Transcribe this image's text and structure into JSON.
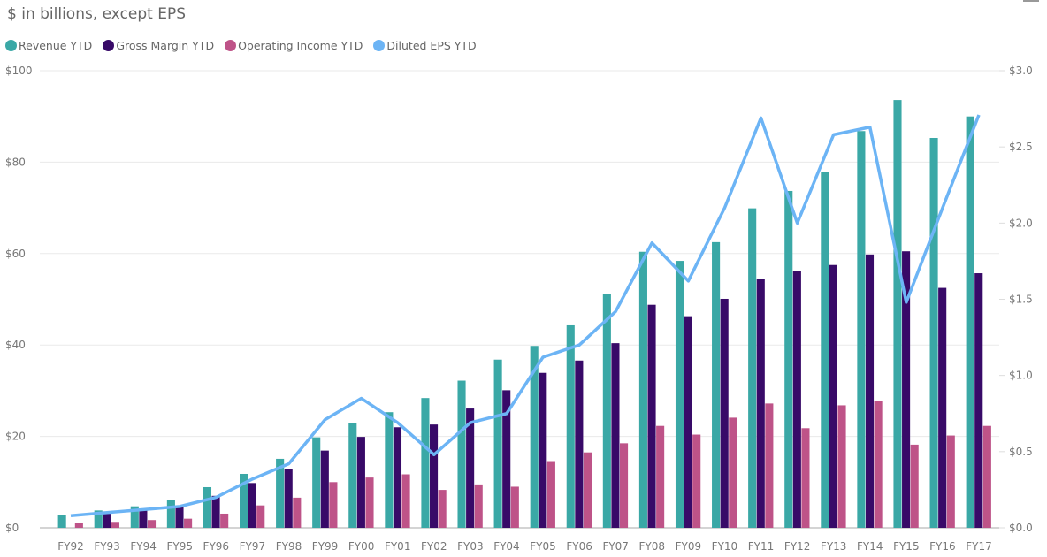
{
  "chart_data": {
    "type": "bar",
    "title": "$ in billions, except EPS",
    "categories": [
      "FY92",
      "FY93",
      "FY94",
      "FY95",
      "FY96",
      "FY97",
      "FY98",
      "FY99",
      "FY00",
      "FY01",
      "FY02",
      "FY03",
      "FY04",
      "FY05",
      "FY06",
      "FY07",
      "FY08",
      "FY09",
      "FY10",
      "FY11",
      "FY12",
      "FY13",
      "FY14",
      "FY15",
      "FY16",
      "FY17"
    ],
    "series": [
      {
        "name": "Revenue YTD",
        "type": "bar",
        "axis": "left",
        "color": "#3AA8A6",
        "values": [
          2.8,
          3.8,
          4.7,
          6.0,
          8.9,
          11.8,
          15.1,
          19.8,
          23.0,
          25.3,
          28.4,
          32.2,
          36.8,
          39.8,
          44.3,
          51.1,
          60.4,
          58.4,
          62.5,
          69.9,
          73.7,
          77.8,
          86.8,
          93.6,
          85.3,
          90.0
        ]
      },
      {
        "name": "Gross Margin YTD",
        "type": "bar",
        "axis": "left",
        "color": "#380A68",
        "values": [
          null,
          3.2,
          3.9,
          4.9,
          7.0,
          9.8,
          12.8,
          16.9,
          19.9,
          22.0,
          22.6,
          26.1,
          30.1,
          33.9,
          36.6,
          40.4,
          48.8,
          46.3,
          50.1,
          54.4,
          56.2,
          57.5,
          59.8,
          60.5,
          52.5,
          55.7
        ]
      },
      {
        "name": "Operating Income YTD",
        "type": "bar",
        "axis": "left",
        "color": "#BE5388",
        "values": [
          1.0,
          1.3,
          1.7,
          2.0,
          3.1,
          4.9,
          6.6,
          10.0,
          11.0,
          11.7,
          8.3,
          9.5,
          9.0,
          14.6,
          16.5,
          18.5,
          22.3,
          20.4,
          24.1,
          27.2,
          21.8,
          26.8,
          27.8,
          18.2,
          20.2,
          22.3
        ]
      },
      {
        "name": "Diluted EPS YTD",
        "type": "line",
        "axis": "right",
        "color": "#6CB4F5",
        "values": [
          0.08,
          0.1,
          0.12,
          0.14,
          0.2,
          0.32,
          0.42,
          0.71,
          0.85,
          0.69,
          0.48,
          0.69,
          0.75,
          1.12,
          1.2,
          1.42,
          1.87,
          1.62,
          2.1,
          2.69,
          2.0,
          2.58,
          2.63,
          1.48,
          2.1,
          2.71
        ]
      }
    ],
    "y_left": {
      "range": [
        0,
        100
      ],
      "ticks": [
        "$0",
        "$20",
        "$40",
        "$60",
        "$80",
        "$100"
      ],
      "tick_values": [
        0,
        20,
        40,
        60,
        80,
        100
      ]
    },
    "y_right": {
      "range": [
        0,
        3.0
      ],
      "ticks": [
        "$0.0",
        "$0.5",
        "$1.0",
        "$1.5",
        "$2.0",
        "$2.5",
        "$3.0"
      ],
      "tick_values": [
        0,
        0.5,
        1.0,
        1.5,
        2.0,
        2.5,
        3.0
      ]
    },
    "grid": true,
    "legend_position": "top-left"
  }
}
